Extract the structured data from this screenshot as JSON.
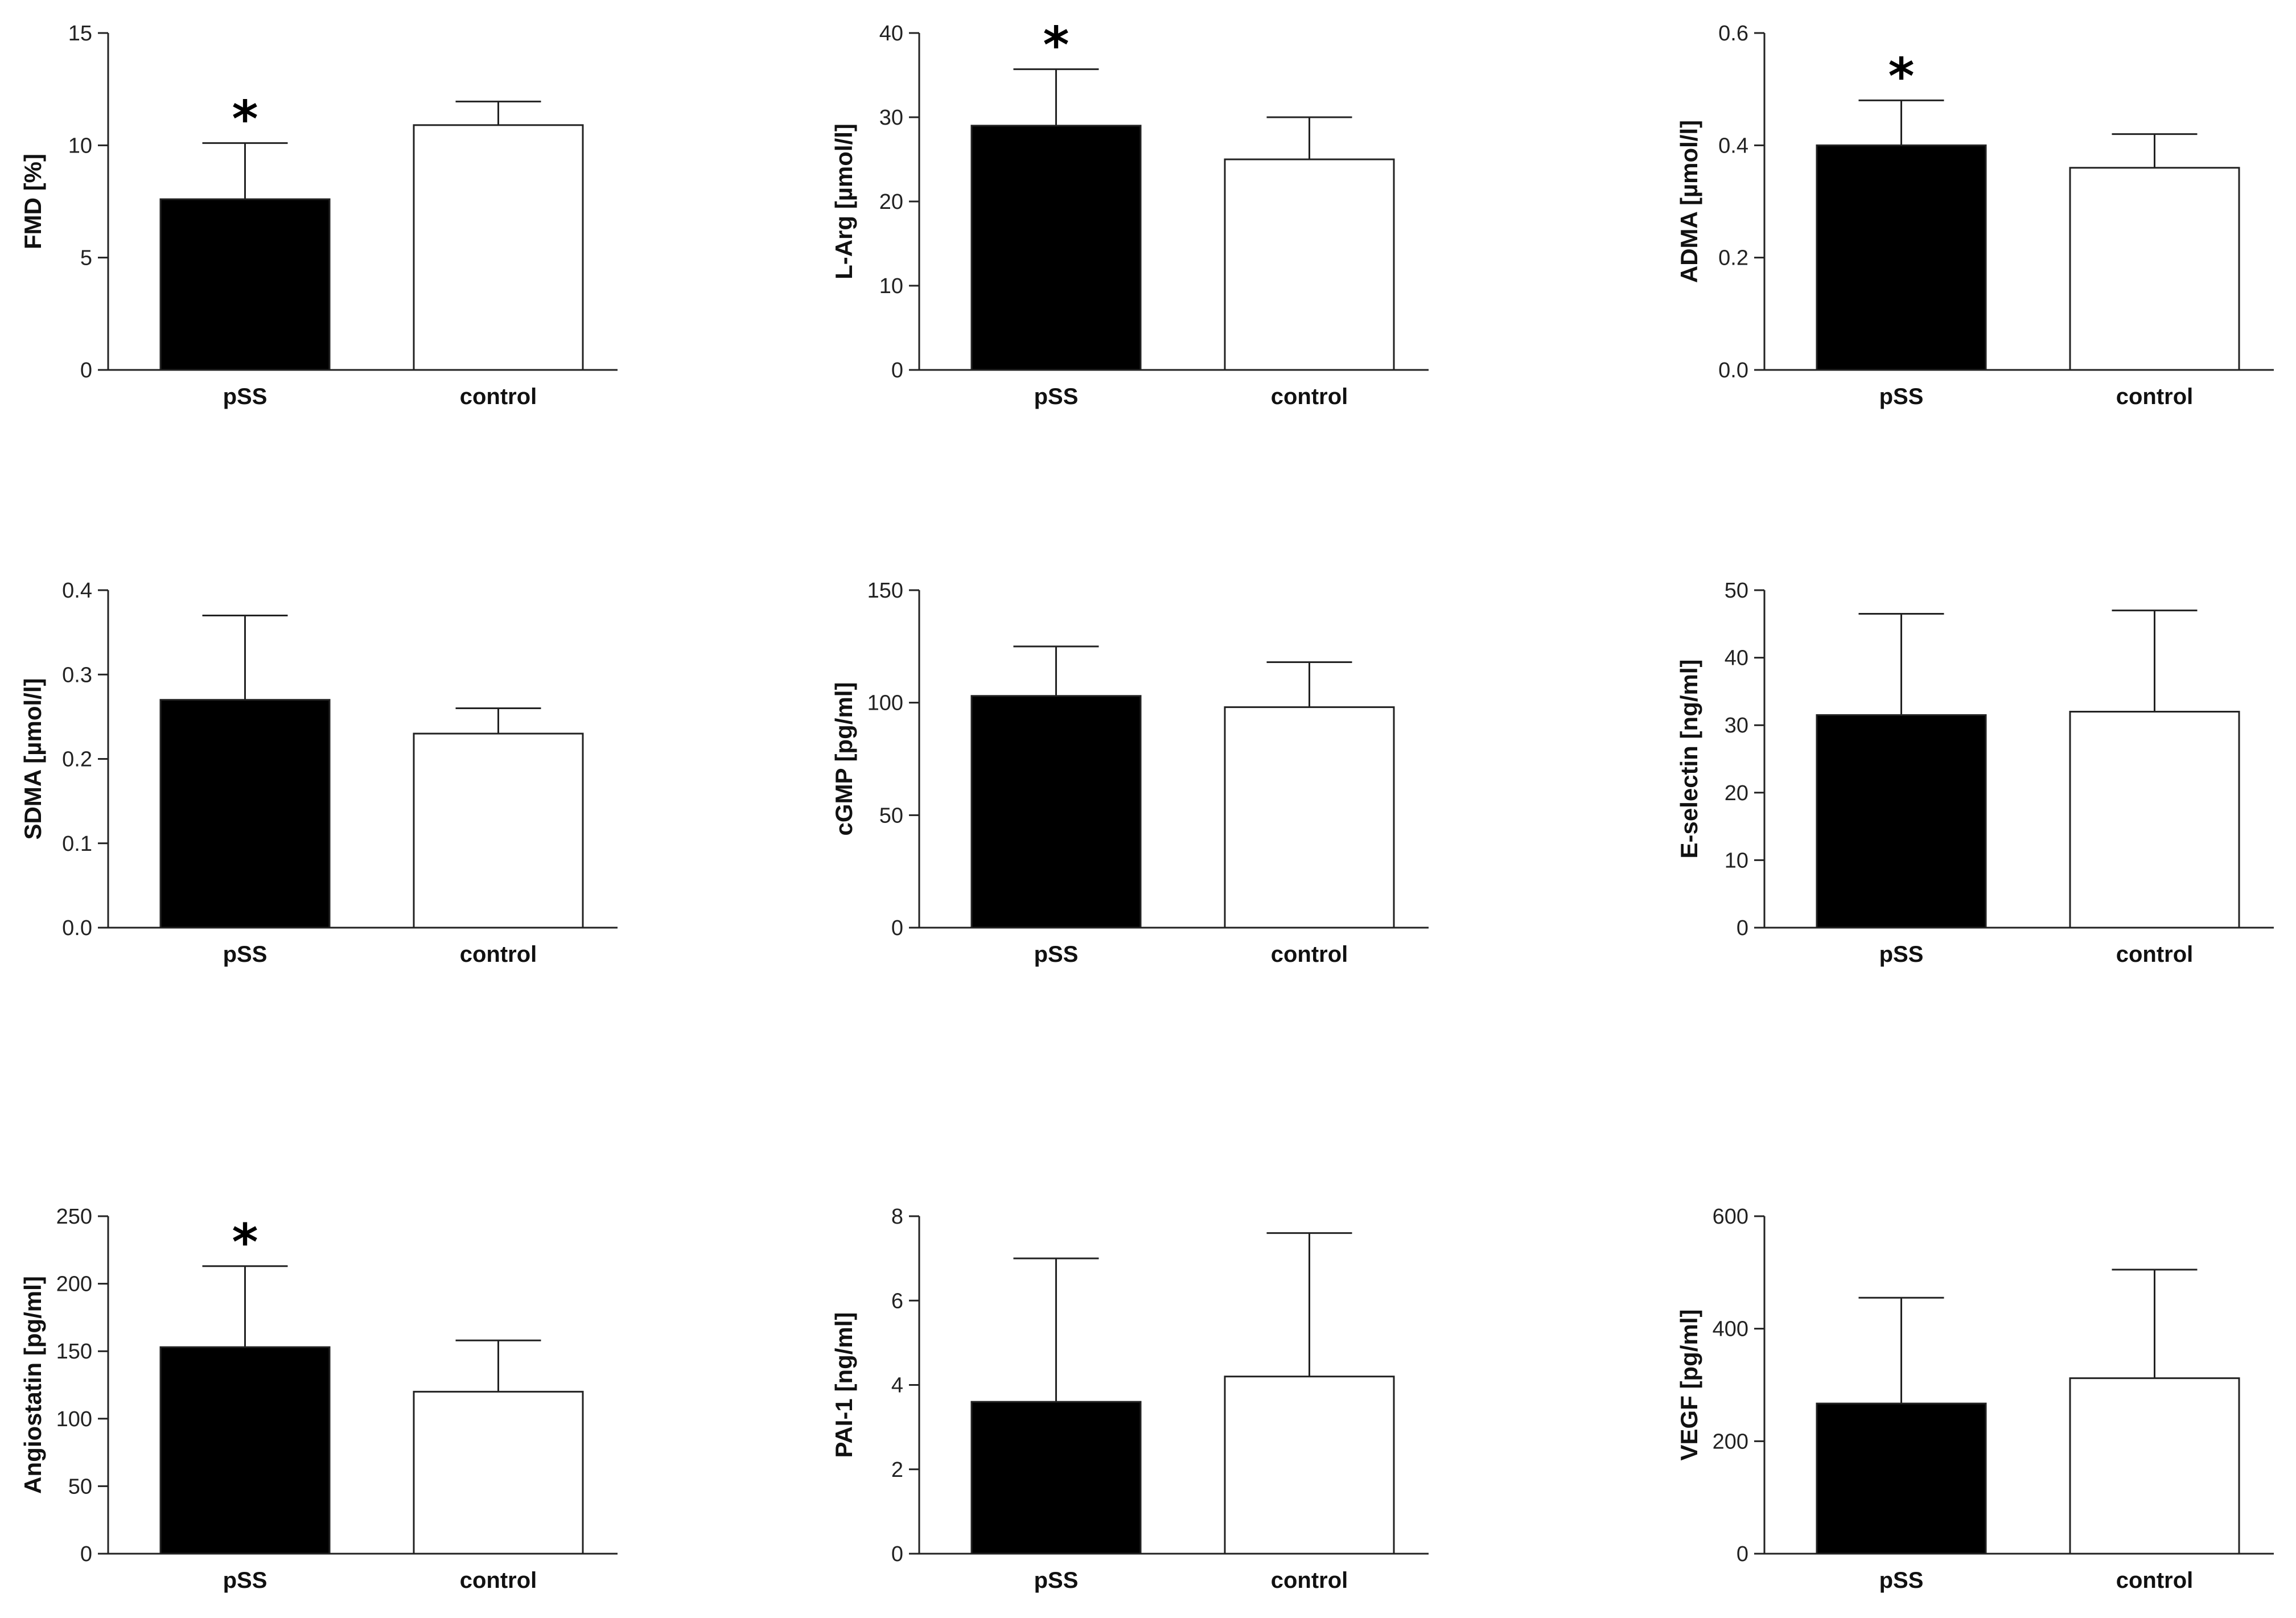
{
  "chart_data": [
    {
      "type": "bar",
      "title": "",
      "ylabel": "FMD [%]",
      "categories": [
        "pSS",
        "control"
      ],
      "values": [
        7.6,
        10.9
      ],
      "errors": [
        2.5,
        1.05
      ],
      "significant": [
        true,
        false
      ],
      "ylim": [
        0,
        15
      ],
      "yticks": [
        "0",
        "5",
        "10",
        "15"
      ],
      "colors": [
        "#000000",
        "#ffffff"
      ]
    },
    {
      "type": "bar",
      "title": "",
      "ylabel": "L-Arg [µmol/l]",
      "categories": [
        "pSS",
        "control"
      ],
      "values": [
        29,
        25
      ],
      "errors": [
        6.7,
        5
      ],
      "significant": [
        true,
        false
      ],
      "ylim": [
        0,
        40
      ],
      "yticks": [
        "0",
        "10",
        "20",
        "30",
        "40"
      ],
      "colors": [
        "#000000",
        "#ffffff"
      ]
    },
    {
      "type": "bar",
      "title": "",
      "ylabel": "ADMA [µmol/l]",
      "categories": [
        "pSS",
        "control"
      ],
      "values": [
        0.4,
        0.36
      ],
      "errors": [
        0.08,
        0.06
      ],
      "significant": [
        true,
        false
      ],
      "ylim": [
        0,
        0.6
      ],
      "yticks": [
        "0.0",
        "0.2",
        "0.4",
        "0.6"
      ],
      "colors": [
        "#000000",
        "#ffffff"
      ]
    },
    {
      "type": "bar",
      "title": "",
      "ylabel": "SDMA [µmol/l]",
      "categories": [
        "pSS",
        "control"
      ],
      "values": [
        0.27,
        0.23
      ],
      "errors": [
        0.1,
        0.03
      ],
      "significant": [
        false,
        false
      ],
      "ylim": [
        0,
        0.4
      ],
      "yticks": [
        "0.0",
        "0.1",
        "0.2",
        "0.3",
        "0.4"
      ],
      "colors": [
        "#000000",
        "#ffffff"
      ]
    },
    {
      "type": "bar",
      "title": "",
      "ylabel": "cGMP [pg/ml]",
      "categories": [
        "pSS",
        "control"
      ],
      "values": [
        103,
        98
      ],
      "errors": [
        22,
        20
      ],
      "significant": [
        false,
        false
      ],
      "ylim": [
        0,
        150
      ],
      "yticks": [
        "0",
        "50",
        "100",
        "150"
      ],
      "colors": [
        "#000000",
        "#ffffff"
      ]
    },
    {
      "type": "bar",
      "title": "",
      "ylabel": "E-selectin  [ng/ml]",
      "categories": [
        "pSS",
        "control"
      ],
      "values": [
        31.5,
        32
      ],
      "errors": [
        15,
        15
      ],
      "significant": [
        false,
        false
      ],
      "ylim": [
        0,
        50
      ],
      "yticks": [
        "0",
        "10",
        "20",
        "30",
        "40",
        "50"
      ],
      "colors": [
        "#000000",
        "#ffffff"
      ]
    },
    {
      "type": "bar",
      "title": "",
      "ylabel": "Angiostatin [pg/ml]",
      "categories": [
        "pSS",
        "control"
      ],
      "values": [
        153,
        120
      ],
      "errors": [
        60,
        38
      ],
      "significant": [
        true,
        false
      ],
      "ylim": [
        0,
        250
      ],
      "yticks": [
        "0",
        "50",
        "100",
        "150",
        "200",
        "250"
      ],
      "colors": [
        "#000000",
        "#ffffff"
      ]
    },
    {
      "type": "bar",
      "title": "",
      "ylabel": "PAI-1  [ng/ml]",
      "categories": [
        "pSS",
        "control"
      ],
      "values": [
        3.6,
        4.2
      ],
      "errors": [
        3.4,
        3.4
      ],
      "significant": [
        false,
        false
      ],
      "ylim": [
        0,
        8
      ],
      "yticks": [
        "0",
        "2",
        "4",
        "6",
        "8"
      ],
      "colors": [
        "#000000",
        "#ffffff"
      ]
    },
    {
      "type": "bar",
      "title": "",
      "ylabel": "VEGF [pg/ml]",
      "categories": [
        "pSS",
        "control"
      ],
      "values": [
        267,
        312
      ],
      "errors": [
        188,
        193
      ],
      "significant": [
        false,
        false
      ],
      "ylim": [
        0,
        600
      ],
      "yticks": [
        "0",
        "200",
        "400",
        "600"
      ],
      "colors": [
        "#000000",
        "#ffffff"
      ]
    }
  ],
  "significance_marker": "*"
}
